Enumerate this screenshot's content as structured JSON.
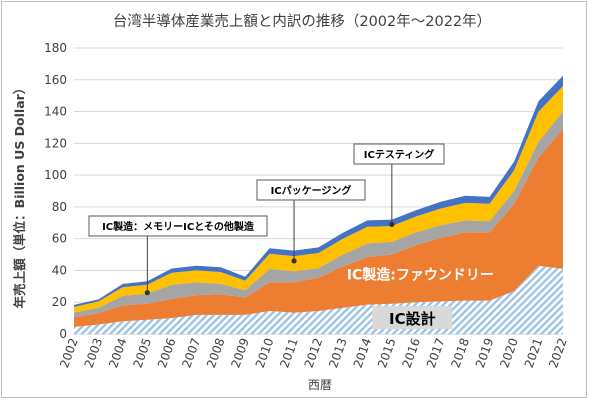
{
  "chart_data": {
    "type": "area",
    "stacked": true,
    "title": "台湾半導体産業売上額と内訳の推移（2002年～2022年）",
    "xlabel": "西暦",
    "ylabel": "年売上額（単位：Billion US Dollar）",
    "ylim": [
      0,
      180
    ],
    "yticks": [
      0,
      20,
      40,
      60,
      80,
      100,
      120,
      140,
      160,
      180
    ],
    "grid": true,
    "legend": "none",
    "x": [
      "2002",
      "2003",
      "2004",
      "2005",
      "2006",
      "2007",
      "2008",
      "2009",
      "2010",
      "2011",
      "2012",
      "2013",
      "2014",
      "2015",
      "2016",
      "2017",
      "2018",
      "2019",
      "2020",
      "2021",
      "2022"
    ],
    "series": [
      {
        "name": "IC設計",
        "color": "#9dc3e6",
        "pattern": "hatch",
        "values": [
          4.5,
          6,
          8,
          9,
          10,
          12,
          12,
          12,
          14.5,
          13.5,
          14.5,
          16.5,
          18.5,
          19,
          20,
          20.5,
          21,
          21,
          27,
          43,
          41
        ]
      },
      {
        "name": "IC製造:ファウンドリー",
        "color": "#ed7d31",
        "values": [
          6,
          7,
          10,
          10,
          12,
          12.5,
          13,
          11,
          18,
          19,
          21,
          26,
          30,
          31,
          36,
          40,
          43,
          43,
          55,
          68,
          88
        ]
      },
      {
        "name": "IC製造：メモリーICとその他製造",
        "color": "#a5a5a5",
        "values": [
          3,
          3.5,
          6,
          6.5,
          9,
          8,
          6.5,
          4.5,
          8.5,
          7,
          6,
          7.5,
          8.5,
          8,
          8,
          8,
          7.5,
          7,
          8,
          10,
          11
        ]
      },
      {
        "name": "ICパッケージング",
        "color": "#ffc000",
        "values": [
          3.5,
          4,
          5.5,
          5.5,
          7.5,
          7.5,
          7.5,
          6,
          9.5,
          9.5,
          9.5,
          10,
          10.5,
          10,
          10,
          10.5,
          11,
          11,
          13,
          19,
          16
        ]
      },
      {
        "name": "ICテスティング",
        "color": "#4472c4",
        "values": [
          1.3,
          1.3,
          2,
          2.2,
          2.7,
          3,
          3,
          2.5,
          3.5,
          3.5,
          3.5,
          3.7,
          4,
          4,
          4,
          4.2,
          4.5,
          4.3,
          5.5,
          6.5,
          6.5
        ]
      }
    ],
    "annotations": [
      {
        "text": "IC製造：メモリーICとその他製造",
        "series": 2,
        "anchor_x": "2005",
        "anchor_y": 26
      },
      {
        "text": "ICパッケージング",
        "series": 3,
        "anchor_x": "2011",
        "anchor_y": 46
      },
      {
        "text": "ICテスティング",
        "series": 4,
        "anchor_x": "2015",
        "anchor_y": 69
      }
    ],
    "inline_labels": [
      {
        "text": "IC製造:ファウンドリー",
        "series": 1
      },
      {
        "text": "IC設計",
        "series": 0
      }
    ]
  }
}
